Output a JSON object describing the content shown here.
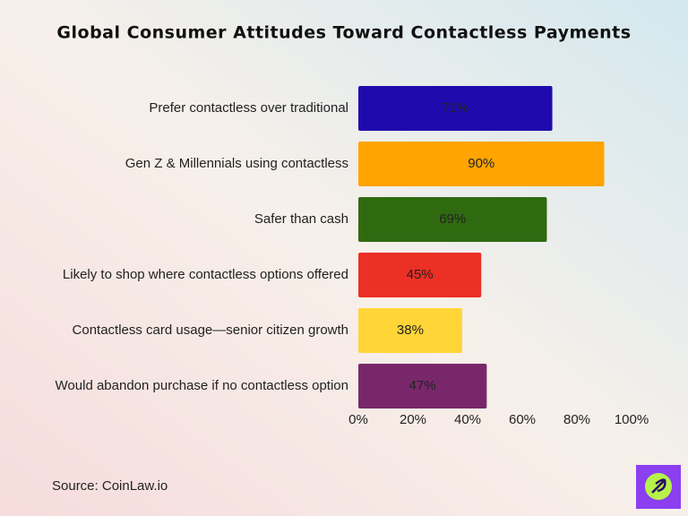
{
  "chart_data": {
    "type": "bar",
    "orientation": "horizontal",
    "title": "Global Consumer Attitudes Toward Contactless Payments",
    "categories": [
      "Prefer contactless over traditional",
      "Gen Z & Millennials using contactless",
      "Safer than cash",
      "Likely to shop where contactless options offered",
      "Contactless card usage—senior citizen growth",
      "Would abandon purchase if no contactless option"
    ],
    "values": [
      71,
      90,
      69,
      45,
      38,
      47
    ],
    "value_labels": [
      "71%",
      "90%",
      "69%",
      "45%",
      "38%",
      "47%"
    ],
    "colors": [
      "#1f0aad",
      "#ffa400",
      "#2f6a11",
      "#ec3025",
      "#ffd537",
      "#78286a"
    ],
    "xlim": [
      0,
      100
    ],
    "xticks": [
      {
        "value": 0,
        "label": "0%"
      },
      {
        "value": 20,
        "label": "20%"
      },
      {
        "value": 40,
        "label": "40%"
      },
      {
        "value": 60,
        "label": "60%"
      },
      {
        "value": 80,
        "label": "80%"
      },
      {
        "value": 100,
        "label": "100%"
      }
    ],
    "grid": false,
    "source": "Source: CoinLaw.io"
  }
}
